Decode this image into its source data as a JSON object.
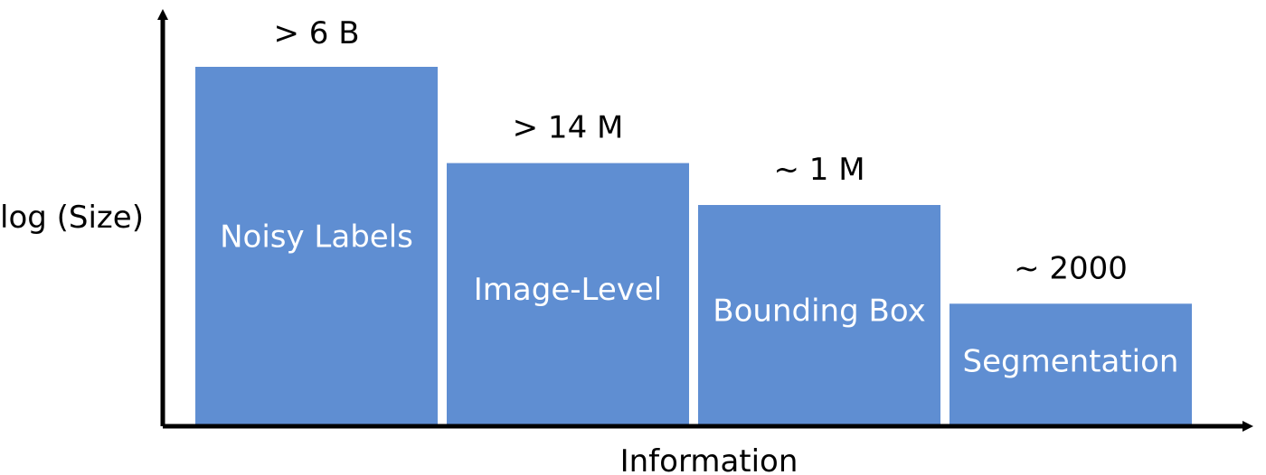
{
  "chart_data": {
    "type": "bar",
    "title": "",
    "xlabel": "Information",
    "ylabel": "log (Size)",
    "y_scale": "log",
    "categories": [
      "Noisy Labels",
      "Image-Level",
      "Bounding Box",
      "Segmentation"
    ],
    "values": [
      6000000000,
      14000000,
      1000000,
      2000
    ],
    "value_labels": [
      "> 6 B",
      "> 14 M",
      "~ 1 M",
      "~ 2000"
    ],
    "ylim": [
      1,
      6000000000
    ],
    "grid": false,
    "legend": "none",
    "bar_color": "#5f8ed2",
    "axis_color": "#000000"
  }
}
